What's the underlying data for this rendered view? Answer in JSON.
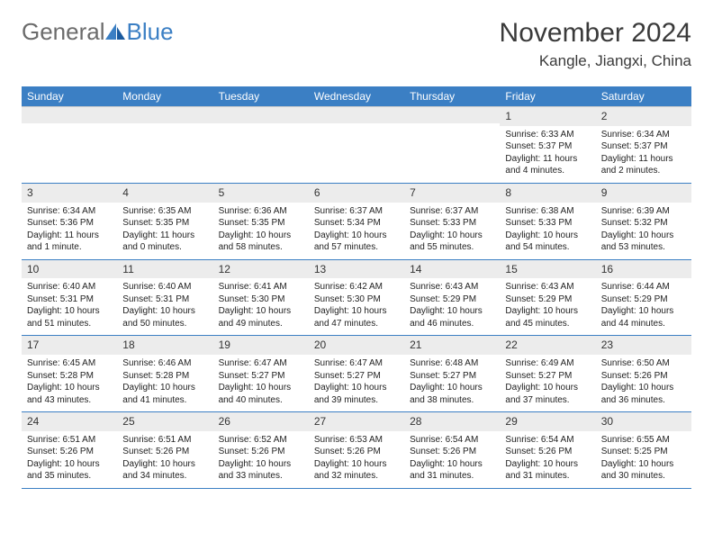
{
  "logo": {
    "general": "General",
    "blue": "Blue"
  },
  "title": "November 2024",
  "location": "Kangle, Jiangxi, China",
  "colors": {
    "header_bg": "#3b7fc4",
    "header_text": "#ffffff",
    "daynum_bg": "#ececec",
    "row_border": "#3b7fc4",
    "text": "#222222",
    "logo_gray": "#6b6b6b",
    "logo_blue": "#3b7fc4"
  },
  "weekdays": [
    "Sunday",
    "Monday",
    "Tuesday",
    "Wednesday",
    "Thursday",
    "Friday",
    "Saturday"
  ],
  "weeks": [
    [
      {
        "blank": true
      },
      {
        "blank": true
      },
      {
        "blank": true
      },
      {
        "blank": true
      },
      {
        "blank": true
      },
      {
        "day": "1",
        "sunrise": "Sunrise: 6:33 AM",
        "sunset": "Sunset: 5:37 PM",
        "daylight": "Daylight: 11 hours and 4 minutes."
      },
      {
        "day": "2",
        "sunrise": "Sunrise: 6:34 AM",
        "sunset": "Sunset: 5:37 PM",
        "daylight": "Daylight: 11 hours and 2 minutes."
      }
    ],
    [
      {
        "day": "3",
        "sunrise": "Sunrise: 6:34 AM",
        "sunset": "Sunset: 5:36 PM",
        "daylight": "Daylight: 11 hours and 1 minute."
      },
      {
        "day": "4",
        "sunrise": "Sunrise: 6:35 AM",
        "sunset": "Sunset: 5:35 PM",
        "daylight": "Daylight: 11 hours and 0 minutes."
      },
      {
        "day": "5",
        "sunrise": "Sunrise: 6:36 AM",
        "sunset": "Sunset: 5:35 PM",
        "daylight": "Daylight: 10 hours and 58 minutes."
      },
      {
        "day": "6",
        "sunrise": "Sunrise: 6:37 AM",
        "sunset": "Sunset: 5:34 PM",
        "daylight": "Daylight: 10 hours and 57 minutes."
      },
      {
        "day": "7",
        "sunrise": "Sunrise: 6:37 AM",
        "sunset": "Sunset: 5:33 PM",
        "daylight": "Daylight: 10 hours and 55 minutes."
      },
      {
        "day": "8",
        "sunrise": "Sunrise: 6:38 AM",
        "sunset": "Sunset: 5:33 PM",
        "daylight": "Daylight: 10 hours and 54 minutes."
      },
      {
        "day": "9",
        "sunrise": "Sunrise: 6:39 AM",
        "sunset": "Sunset: 5:32 PM",
        "daylight": "Daylight: 10 hours and 53 minutes."
      }
    ],
    [
      {
        "day": "10",
        "sunrise": "Sunrise: 6:40 AM",
        "sunset": "Sunset: 5:31 PM",
        "daylight": "Daylight: 10 hours and 51 minutes."
      },
      {
        "day": "11",
        "sunrise": "Sunrise: 6:40 AM",
        "sunset": "Sunset: 5:31 PM",
        "daylight": "Daylight: 10 hours and 50 minutes."
      },
      {
        "day": "12",
        "sunrise": "Sunrise: 6:41 AM",
        "sunset": "Sunset: 5:30 PM",
        "daylight": "Daylight: 10 hours and 49 minutes."
      },
      {
        "day": "13",
        "sunrise": "Sunrise: 6:42 AM",
        "sunset": "Sunset: 5:30 PM",
        "daylight": "Daylight: 10 hours and 47 minutes."
      },
      {
        "day": "14",
        "sunrise": "Sunrise: 6:43 AM",
        "sunset": "Sunset: 5:29 PM",
        "daylight": "Daylight: 10 hours and 46 minutes."
      },
      {
        "day": "15",
        "sunrise": "Sunrise: 6:43 AM",
        "sunset": "Sunset: 5:29 PM",
        "daylight": "Daylight: 10 hours and 45 minutes."
      },
      {
        "day": "16",
        "sunrise": "Sunrise: 6:44 AM",
        "sunset": "Sunset: 5:29 PM",
        "daylight": "Daylight: 10 hours and 44 minutes."
      }
    ],
    [
      {
        "day": "17",
        "sunrise": "Sunrise: 6:45 AM",
        "sunset": "Sunset: 5:28 PM",
        "daylight": "Daylight: 10 hours and 43 minutes."
      },
      {
        "day": "18",
        "sunrise": "Sunrise: 6:46 AM",
        "sunset": "Sunset: 5:28 PM",
        "daylight": "Daylight: 10 hours and 41 minutes."
      },
      {
        "day": "19",
        "sunrise": "Sunrise: 6:47 AM",
        "sunset": "Sunset: 5:27 PM",
        "daylight": "Daylight: 10 hours and 40 minutes."
      },
      {
        "day": "20",
        "sunrise": "Sunrise: 6:47 AM",
        "sunset": "Sunset: 5:27 PM",
        "daylight": "Daylight: 10 hours and 39 minutes."
      },
      {
        "day": "21",
        "sunrise": "Sunrise: 6:48 AM",
        "sunset": "Sunset: 5:27 PM",
        "daylight": "Daylight: 10 hours and 38 minutes."
      },
      {
        "day": "22",
        "sunrise": "Sunrise: 6:49 AM",
        "sunset": "Sunset: 5:27 PM",
        "daylight": "Daylight: 10 hours and 37 minutes."
      },
      {
        "day": "23",
        "sunrise": "Sunrise: 6:50 AM",
        "sunset": "Sunset: 5:26 PM",
        "daylight": "Daylight: 10 hours and 36 minutes."
      }
    ],
    [
      {
        "day": "24",
        "sunrise": "Sunrise: 6:51 AM",
        "sunset": "Sunset: 5:26 PM",
        "daylight": "Daylight: 10 hours and 35 minutes."
      },
      {
        "day": "25",
        "sunrise": "Sunrise: 6:51 AM",
        "sunset": "Sunset: 5:26 PM",
        "daylight": "Daylight: 10 hours and 34 minutes."
      },
      {
        "day": "26",
        "sunrise": "Sunrise: 6:52 AM",
        "sunset": "Sunset: 5:26 PM",
        "daylight": "Daylight: 10 hours and 33 minutes."
      },
      {
        "day": "27",
        "sunrise": "Sunrise: 6:53 AM",
        "sunset": "Sunset: 5:26 PM",
        "daylight": "Daylight: 10 hours and 32 minutes."
      },
      {
        "day": "28",
        "sunrise": "Sunrise: 6:54 AM",
        "sunset": "Sunset: 5:26 PM",
        "daylight": "Daylight: 10 hours and 31 minutes."
      },
      {
        "day": "29",
        "sunrise": "Sunrise: 6:54 AM",
        "sunset": "Sunset: 5:26 PM",
        "daylight": "Daylight: 10 hours and 31 minutes."
      },
      {
        "day": "30",
        "sunrise": "Sunrise: 6:55 AM",
        "sunset": "Sunset: 5:25 PM",
        "daylight": "Daylight: 10 hours and 30 minutes."
      }
    ]
  ]
}
